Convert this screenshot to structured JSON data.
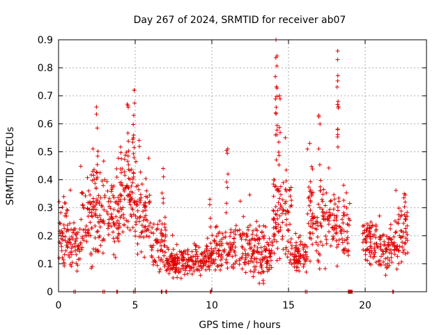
{
  "chart_data": {
    "type": "scatter",
    "title": "Day 267 of 2024, SRMTID for receiver ab07",
    "xlabel": "GPS time / hours",
    "ylabel": "SRMTID / TECUs",
    "xlim": [
      0,
      24
    ],
    "ylim": [
      0,
      0.9
    ],
    "grid": true,
    "marker": "+",
    "series_color": "#e00000",
    "xticks": [
      {
        "value": 0,
        "label": "0"
      },
      {
        "value": 5,
        "label": "5"
      },
      {
        "value": 10,
        "label": "10"
      },
      {
        "value": 15,
        "label": "15"
      },
      {
        "value": 20,
        "label": "20"
      }
    ],
    "yticks": [
      {
        "value": 0,
        "label": "0"
      },
      {
        "value": 0.1,
        "label": "0.1"
      },
      {
        "value": 0.2,
        "label": "0.2"
      },
      {
        "value": 0.3,
        "label": "0.3"
      },
      {
        "value": 0.4,
        "label": "0.4"
      },
      {
        "value": 0.5,
        "label": "0.5"
      },
      {
        "value": 0.6,
        "label": "0.6"
      },
      {
        "value": 0.7,
        "label": "0.7"
      },
      {
        "value": 0.8,
        "label": "0.8"
      },
      {
        "value": 0.9,
        "label": "0.9"
      }
    ],
    "segments": [
      {
        "x0": 0.0,
        "x1": 0.6,
        "base": 0.2,
        "spread": 0.1,
        "n": 45
      },
      {
        "x0": 0.6,
        "x1": 1.4,
        "base": 0.17,
        "spread": 0.08,
        "n": 50
      },
      {
        "x0": 1.4,
        "x1": 2.2,
        "base": 0.25,
        "spread": 0.1,
        "n": 55
      },
      {
        "x0": 2.2,
        "x1": 3.2,
        "base": 0.3,
        "spread": 0.12,
        "n": 70
      },
      {
        "x0": 3.2,
        "x1": 4.0,
        "base": 0.27,
        "spread": 0.1,
        "n": 60
      },
      {
        "x0": 4.0,
        "x1": 5.0,
        "base": 0.35,
        "spread": 0.12,
        "n": 80
      },
      {
        "x0": 5.0,
        "x1": 6.0,
        "base": 0.28,
        "spread": 0.1,
        "n": 70
      },
      {
        "x0": 6.0,
        "x1": 7.0,
        "base": 0.17,
        "spread": 0.07,
        "n": 60
      },
      {
        "x0": 7.0,
        "x1": 10.0,
        "base": 0.11,
        "spread": 0.04,
        "n": 200
      },
      {
        "x0": 10.0,
        "x1": 11.5,
        "base": 0.15,
        "spread": 0.07,
        "n": 90
      },
      {
        "x0": 11.5,
        "x1": 13.0,
        "base": 0.15,
        "spread": 0.08,
        "n": 90
      },
      {
        "x0": 13.0,
        "x1": 14.0,
        "base": 0.13,
        "spread": 0.07,
        "n": 70
      },
      {
        "x0": 14.0,
        "x1": 15.2,
        "base": 0.25,
        "spread": 0.12,
        "n": 90
      },
      {
        "x0": 15.2,
        "x1": 16.2,
        "base": 0.13,
        "spread": 0.05,
        "n": 70
      },
      {
        "x0": 16.2,
        "x1": 18.0,
        "base": 0.25,
        "spread": 0.1,
        "n": 110
      },
      {
        "x0": 18.0,
        "x1": 19.0,
        "base": 0.22,
        "spread": 0.1,
        "n": 60
      },
      {
        "x0": 19.8,
        "x1": 21.0,
        "base": 0.18,
        "spread": 0.07,
        "n": 80
      },
      {
        "x0": 21.0,
        "x1": 22.0,
        "base": 0.15,
        "spread": 0.05,
        "n": 60
      },
      {
        "x0": 22.0,
        "x1": 22.8,
        "base": 0.2,
        "spread": 0.08,
        "n": 50
      }
    ],
    "spikes": [
      {
        "x": 2.5,
        "min": 0.4,
        "max": 0.66,
        "n": 8
      },
      {
        "x": 4.5,
        "min": 0.45,
        "max": 0.67,
        "n": 8
      },
      {
        "x": 4.9,
        "min": 0.45,
        "max": 0.72,
        "n": 10
      },
      {
        "x": 6.8,
        "min": 0.3,
        "max": 0.44,
        "n": 5
      },
      {
        "x": 9.9,
        "min": 0.2,
        "max": 0.33,
        "n": 4
      },
      {
        "x": 11.0,
        "min": 0.35,
        "max": 0.51,
        "n": 6
      },
      {
        "x": 14.2,
        "min": 0.5,
        "max": 0.9,
        "n": 16
      },
      {
        "x": 14.4,
        "min": 0.45,
        "max": 0.7,
        "n": 8
      },
      {
        "x": 14.8,
        "min": 0.35,
        "max": 0.55,
        "n": 6
      },
      {
        "x": 16.4,
        "min": 0.35,
        "max": 0.53,
        "n": 4
      },
      {
        "x": 17.0,
        "min": 0.4,
        "max": 0.63,
        "n": 5
      },
      {
        "x": 18.2,
        "min": 0.5,
        "max": 0.86,
        "n": 14
      },
      {
        "x": 22.6,
        "min": 0.25,
        "max": 0.35,
        "n": 6
      }
    ],
    "zeros": [
      1.0,
      1.1,
      2.9,
      3.0,
      3.8,
      3.85,
      4.9,
      5.0,
      6.7,
      6.75,
      7.0,
      7.05,
      9.9,
      9.95,
      16.1,
      16.2,
      18.9,
      18.95,
      19.0,
      19.05,
      19.1,
      19.15,
      21.8,
      21.85
    ]
  }
}
